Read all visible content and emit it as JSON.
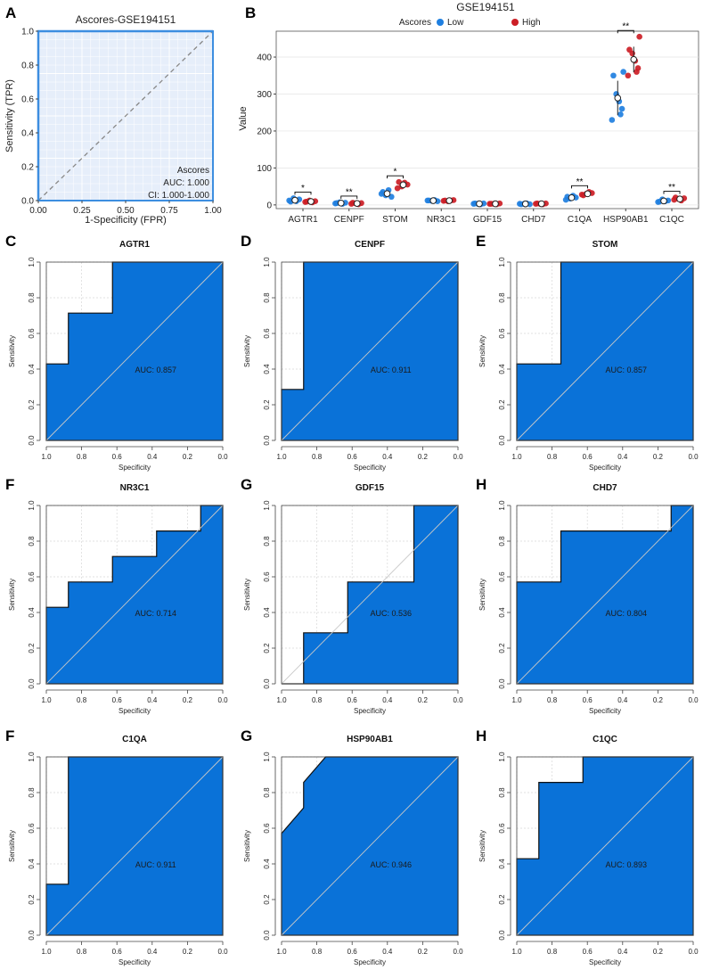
{
  "colors": {
    "roc_fill": "#0a72d8",
    "panel_a_bg": "#e6eefa",
    "panel_a_frame": "#3d8ee0",
    "low": "#1f7fe0",
    "high": "#cc1e26"
  },
  "panelA": {
    "letter": "A",
    "title": "Ascores-GSE194151",
    "xlabel": "1-Specificity (FPR)",
    "ylabel": "Sensitivity (TPR)",
    "xticks": [
      "0.00",
      "0.25",
      "0.50",
      "0.75",
      "1.00"
    ],
    "yticks": [
      "0.0",
      "0.2",
      "0.4",
      "0.6",
      "0.8",
      "1.0"
    ],
    "legend_title": "Ascores",
    "auc_text": "AUC: 1.000",
    "ci_text": "CI: 1.000-1.000"
  },
  "panelB": {
    "letter": "B",
    "title": "GSE194151",
    "legend_title": "Ascores",
    "legend_low": "Low",
    "legend_high": "High",
    "ylabel": "Value",
    "yticks": [
      "0",
      "100",
      "200",
      "300",
      "400"
    ]
  },
  "roc_axes": {
    "xlabel": "Specificity",
    "ylabel": "Sensitivity",
    "xticks": [
      "1.0",
      "0.8",
      "0.6",
      "0.4",
      "0.2",
      "0.0"
    ],
    "yticks": [
      "0.0",
      "0.2",
      "0.4",
      "0.6",
      "0.8",
      "1.0"
    ]
  },
  "roc_panels": [
    {
      "letter": "C",
      "title": "AGTR1",
      "auc_text": "AUC: 0.857"
    },
    {
      "letter": "D",
      "title": "CENPF",
      "auc_text": "AUC: 0.911"
    },
    {
      "letter": "E",
      "title": "STOM",
      "auc_text": "AUC: 0.857"
    },
    {
      "letter": "F",
      "title": "NR3C1",
      "auc_text": "AUC: 0.714"
    },
    {
      "letter": "G",
      "title": "GDF15",
      "auc_text": "AUC: 0.536"
    },
    {
      "letter": "H",
      "title": "CHD7",
      "auc_text": "AUC: 0.804"
    },
    {
      "letter": "F",
      "title": "C1QA",
      "auc_text": "AUC: 0.911"
    },
    {
      "letter": "G",
      "title": "HSP90AB1",
      "auc_text": "AUC: 0.946"
    },
    {
      "letter": "H",
      "title": "C1QC",
      "auc_text": "AUC: 0.893"
    }
  ],
  "chart_data": [
    {
      "type": "line",
      "panel": "A",
      "title": "Ascores-GSE194151",
      "xlabel": "1-Specificity (FPR)",
      "ylabel": "Sensitivity (TPR)",
      "xlim": [
        0,
        1
      ],
      "ylim": [
        0,
        1
      ],
      "series": [
        {
          "name": "Ascores ROC",
          "x": [
            0,
            0,
            1
          ],
          "y": [
            0,
            1,
            1
          ]
        },
        {
          "name": "reference",
          "x": [
            0,
            1
          ],
          "y": [
            0,
            1
          ]
        }
      ],
      "auc": 1.0,
      "ci": [
        1.0,
        1.0
      ]
    },
    {
      "type": "scatter",
      "panel": "B",
      "title": "GSE194151",
      "ylabel": "Value",
      "ylim": [
        0,
        480
      ],
      "categories": [
        "AGTR1",
        "CENPF",
        "STOM",
        "NR3C1",
        "GDF15",
        "CHD7",
        "C1QA",
        "HSP90AB1",
        "C1QC"
      ],
      "series": [
        {
          "name": "Low",
          "values": [
            [
              12,
              15,
              10,
              18,
              9
            ],
            [
              4,
              6,
              3,
              7,
              5
            ],
            [
              30,
              22,
              40,
              26,
              35
            ],
            [
              12,
              10,
              13,
              11,
              12
            ],
            [
              3,
              4,
              2,
              3,
              4
            ],
            [
              3,
              2,
              4,
              3,
              2
            ],
            [
              14,
              20,
              25,
              17,
              22
            ],
            [
              230,
              260,
              280,
              300,
              350,
              360,
              245
            ],
            [
              8,
              12,
              10,
              15,
              9
            ]
          ]
        },
        {
          "name": "High",
          "values": [
            [
              8,
              10,
              7,
              12,
              9
            ],
            [
              3,
              5,
              2,
              4,
              6
            ],
            [
              45,
              55,
              60,
              50,
              62
            ],
            [
              11,
              13,
              12,
              10,
              12
            ],
            [
              3,
              4,
              2,
              3,
              3
            ],
            [
              3,
              4,
              2,
              3,
              4
            ],
            [
              28,
              32,
              35,
              30,
              26
            ],
            [
              350,
              370,
              390,
              410,
              420,
              455,
              360
            ],
            [
              14,
              18,
              12,
              16,
              20
            ]
          ]
        }
      ],
      "significance": [
        "*",
        "**",
        "*",
        "",
        "",
        "",
        "**",
        "**",
        "**"
      ]
    },
    {
      "type": "area",
      "gene": "AGTR1",
      "auc": 0.857,
      "xlabel": "Specificity",
      "ylabel": "Sensitivity",
      "xlim": [
        1,
        0
      ],
      "ylim": [
        0,
        1
      ],
      "specificity": [
        1.0,
        1.0,
        0.875,
        0.875,
        0.625,
        0.625,
        0.0
      ],
      "sensitivity": [
        0.0,
        0.429,
        0.429,
        0.714,
        0.714,
        1.0,
        1.0
      ]
    },
    {
      "type": "area",
      "gene": "CENPF",
      "auc": 0.911,
      "xlabel": "Specificity",
      "ylabel": "Sensitivity",
      "xlim": [
        1,
        0
      ],
      "ylim": [
        0,
        1
      ],
      "specificity": [
        1.0,
        1.0,
        0.875,
        0.875,
        0.0
      ],
      "sensitivity": [
        0.0,
        0.286,
        0.286,
        1.0,
        1.0
      ]
    },
    {
      "type": "area",
      "gene": "STOM",
      "auc": 0.857,
      "xlabel": "Specificity",
      "ylabel": "Sensitivity",
      "xlim": [
        1,
        0
      ],
      "ylim": [
        0,
        1
      ],
      "specificity": [
        1.0,
        1.0,
        0.75,
        0.75,
        0.0
      ],
      "sensitivity": [
        0.0,
        0.429,
        0.429,
        1.0,
        1.0
      ]
    },
    {
      "type": "area",
      "gene": "NR3C1",
      "auc": 0.714,
      "xlabel": "Specificity",
      "ylabel": "Sensitivity",
      "xlim": [
        1,
        0
      ],
      "ylim": [
        0,
        1
      ],
      "specificity": [
        1.0,
        1.0,
        0.875,
        0.875,
        0.625,
        0.625,
        0.375,
        0.375,
        0.125,
        0.125,
        0.0
      ],
      "sensitivity": [
        0.0,
        0.429,
        0.429,
        0.571,
        0.571,
        0.714,
        0.714,
        0.857,
        0.857,
        1.0,
        1.0
      ]
    },
    {
      "type": "area",
      "gene": "GDF15",
      "auc": 0.536,
      "xlabel": "Specificity",
      "ylabel": "Sensitivity",
      "xlim": [
        1,
        0
      ],
      "ylim": [
        0,
        1
      ],
      "specificity": [
        1.0,
        0.875,
        0.875,
        0.625,
        0.625,
        0.25,
        0.25,
        0.0
      ],
      "sensitivity": [
        0.0,
        0.0,
        0.286,
        0.286,
        0.571,
        0.571,
        1.0,
        1.0
      ]
    },
    {
      "type": "area",
      "gene": "CHD7",
      "auc": 0.804,
      "xlabel": "Specificity",
      "ylabel": "Sensitivity",
      "xlim": [
        1,
        0
      ],
      "ylim": [
        0,
        1
      ],
      "specificity": [
        1.0,
        1.0,
        0.75,
        0.75,
        0.125,
        0.125,
        0.0
      ],
      "sensitivity": [
        0.0,
        0.571,
        0.571,
        0.857,
        0.857,
        1.0,
        1.0
      ]
    },
    {
      "type": "area",
      "gene": "C1QA",
      "auc": 0.911,
      "xlabel": "Specificity",
      "ylabel": "Sensitivity",
      "xlim": [
        1,
        0
      ],
      "ylim": [
        0,
        1
      ],
      "specificity": [
        1.0,
        1.0,
        0.875,
        0.875,
        0.0
      ],
      "sensitivity": [
        0.0,
        0.286,
        0.286,
        1.0,
        1.0
      ]
    },
    {
      "type": "area",
      "gene": "HSP90AB1",
      "auc": 0.946,
      "xlabel": "Specificity",
      "ylabel": "Sensitivity",
      "xlim": [
        1,
        0
      ],
      "ylim": [
        0,
        1
      ],
      "specificity": [
        1.0,
        1.0,
        0.875,
        0.875,
        0.75,
        0.0
      ],
      "sensitivity": [
        0.0,
        0.571,
        0.714,
        0.857,
        1.0,
        1.0
      ]
    },
    {
      "type": "area",
      "gene": "C1QC",
      "auc": 0.893,
      "xlabel": "Specificity",
      "ylabel": "Sensitivity",
      "xlim": [
        1,
        0
      ],
      "ylim": [
        0,
        1
      ],
      "specificity": [
        1.0,
        1.0,
        0.875,
        0.875,
        0.625,
        0.625,
        0.0
      ],
      "sensitivity": [
        0.0,
        0.429,
        0.429,
        0.857,
        0.857,
        1.0,
        1.0
      ]
    }
  ]
}
